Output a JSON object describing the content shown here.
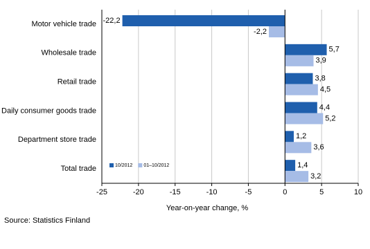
{
  "chart_data": {
    "type": "barh",
    "categories": [
      "Motor vehicle trade",
      "Wholesale trade",
      "Retail trade",
      "Daily consumer goods trade",
      "Department store trade",
      "Total trade"
    ],
    "series": [
      {
        "name": "10/2012",
        "color": "#1f5fad",
        "values": [
          -22.2,
          5.7,
          3.8,
          4.4,
          1.2,
          1.4
        ],
        "value_labels": [
          "-22,2",
          "5,7",
          "3,8",
          "4,4",
          "1,2",
          "1,4"
        ]
      },
      {
        "name": "01–10/2012",
        "color": "#a6bce6",
        "values": [
          -2.2,
          3.9,
          4.5,
          5.2,
          3.6,
          3.2
        ],
        "value_labels": [
          "-2,2",
          "3,9",
          "4,5",
          "5,2",
          "3,6",
          "3,2"
        ]
      }
    ],
    "xlim": [
      -25,
      10
    ],
    "xticks": [
      -25,
      -20,
      -15,
      -10,
      -5,
      0,
      5,
      10
    ],
    "xlabel": "Year-on-year change, %",
    "source": "Source: Statistics Finland",
    "grid": true,
    "legend": "lower left"
  }
}
